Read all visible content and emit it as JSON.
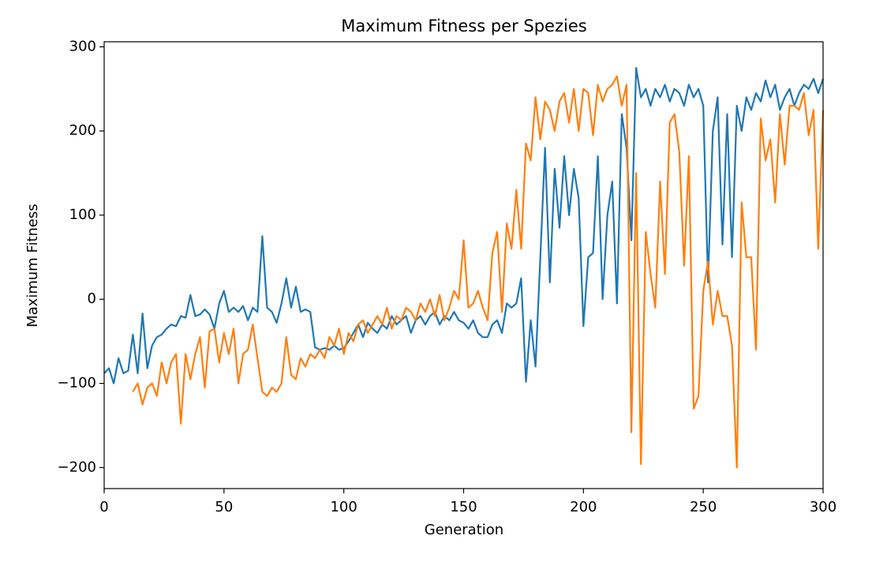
{
  "chart_data": {
    "type": "line",
    "title": "Maximum Fitness per Spezies",
    "x_label": "Generation",
    "y_label": "Maximum Fitness",
    "xlim": [
      0,
      300
    ],
    "ylim": [
      -225,
      306
    ],
    "xticks": [
      0,
      50,
      100,
      150,
      200,
      250,
      300
    ],
    "yticks": [
      {
        "value": -200,
        "label": "−200"
      },
      {
        "value": -100,
        "label": "−100"
      },
      0,
      100,
      200,
      300
    ],
    "x": [
      0,
      2,
      4,
      6,
      8,
      10,
      12,
      14,
      16,
      18,
      20,
      22,
      24,
      26,
      28,
      30,
      32,
      34,
      36,
      38,
      40,
      42,
      44,
      46,
      48,
      50,
      52,
      54,
      56,
      58,
      60,
      62,
      64,
      66,
      68,
      70,
      72,
      74,
      76,
      78,
      80,
      82,
      84,
      86,
      88,
      90,
      92,
      94,
      96,
      98,
      100,
      102,
      104,
      106,
      108,
      110,
      112,
      114,
      116,
      118,
      120,
      122,
      124,
      126,
      128,
      130,
      132,
      134,
      136,
      138,
      140,
      142,
      144,
      146,
      148,
      150,
      152,
      154,
      156,
      158,
      160,
      162,
      164,
      166,
      168,
      170,
      172,
      174,
      176,
      178,
      180,
      182,
      184,
      186,
      188,
      190,
      192,
      194,
      196,
      198,
      200,
      202,
      204,
      206,
      208,
      210,
      212,
      214,
      216,
      218,
      220,
      222,
      224,
      226,
      228,
      230,
      232,
      234,
      236,
      238,
      240,
      242,
      244,
      246,
      248,
      250,
      252,
      254,
      256,
      258,
      260,
      262,
      264,
      266,
      268,
      270,
      272,
      274,
      276,
      278,
      280,
      282,
      284,
      286,
      288,
      290,
      292,
      294,
      296,
      298,
      300
    ],
    "series": [
      {
        "color": "#1f77b4",
        "values": [
          -88,
          -82,
          -100,
          -70,
          -88,
          -85,
          -42,
          -88,
          -17,
          -82,
          -55,
          -45,
          -42,
          -35,
          -30,
          -32,
          -20,
          -22,
          5,
          -20,
          -18,
          -12,
          -18,
          -35,
          -5,
          10,
          -15,
          -10,
          -15,
          -8,
          -25,
          -10,
          -15,
          75,
          -10,
          -15,
          -28,
          -5,
          25,
          -10,
          15,
          -15,
          -12,
          -15,
          -57,
          -60,
          -58,
          -60,
          -55,
          -60,
          -58,
          -50,
          -40,
          -30,
          -45,
          -28,
          -35,
          -40,
          -30,
          -35,
          -20,
          -30,
          -25,
          -20,
          -40,
          -25,
          -20,
          -30,
          -20,
          -15,
          -30,
          -20,
          -25,
          -15,
          -25,
          -28,
          -35,
          -25,
          -40,
          -45,
          -45,
          -30,
          -25,
          -40,
          -5,
          -10,
          -5,
          25,
          -98,
          -25,
          -80,
          50,
          180,
          20,
          155,
          85,
          170,
          100,
          155,
          120,
          -32,
          50,
          55,
          170,
          0,
          100,
          140,
          -5,
          220,
          180,
          70,
          275,
          240,
          250,
          230,
          250,
          240,
          255,
          235,
          250,
          245,
          230,
          255,
          240,
          250,
          230,
          20,
          200,
          240,
          65,
          220,
          50,
          230,
          200,
          240,
          225,
          245,
          235,
          260,
          240,
          255,
          225,
          240,
          250,
          230,
          245,
          255,
          250,
          262,
          245,
          262
        ]
      },
      {
        "color": "#ff7f0e",
        "values": [
          null,
          null,
          null,
          null,
          null,
          null,
          -110,
          -100,
          -125,
          -105,
          -100,
          -115,
          -75,
          -100,
          -75,
          -65,
          -148,
          -65,
          -95,
          -65,
          -45,
          -105,
          -38,
          -35,
          -75,
          -40,
          -65,
          -35,
          -100,
          -65,
          -60,
          -30,
          -70,
          -110,
          -115,
          -105,
          -110,
          -100,
          -45,
          -90,
          -95,
          -70,
          -80,
          -65,
          -70,
          -60,
          -70,
          -45,
          -55,
          -35,
          -65,
          -40,
          -50,
          -30,
          -25,
          -40,
          -30,
          -20,
          -30,
          -10,
          -35,
          -20,
          -25,
          -10,
          -15,
          -25,
          -5,
          -15,
          0,
          -20,
          5,
          -25,
          -10,
          10,
          0,
          70,
          -10,
          -5,
          10,
          -10,
          -25,
          55,
          80,
          -15,
          90,
          60,
          130,
          60,
          185,
          165,
          240,
          190,
          235,
          225,
          200,
          235,
          245,
          210,
          250,
          200,
          250,
          245,
          195,
          255,
          235,
          250,
          255,
          265,
          230,
          255,
          -158,
          150,
          -196,
          80,
          30,
          -10,
          140,
          30,
          210,
          220,
          175,
          40,
          170,
          -130,
          -115,
          10,
          45,
          -30,
          10,
          -20,
          -20,
          -55,
          -200,
          115,
          50,
          50,
          -60,
          215,
          165,
          190,
          115,
          220,
          160,
          230,
          230,
          225,
          245,
          195,
          225,
          60,
          225
        ]
      }
    ]
  }
}
